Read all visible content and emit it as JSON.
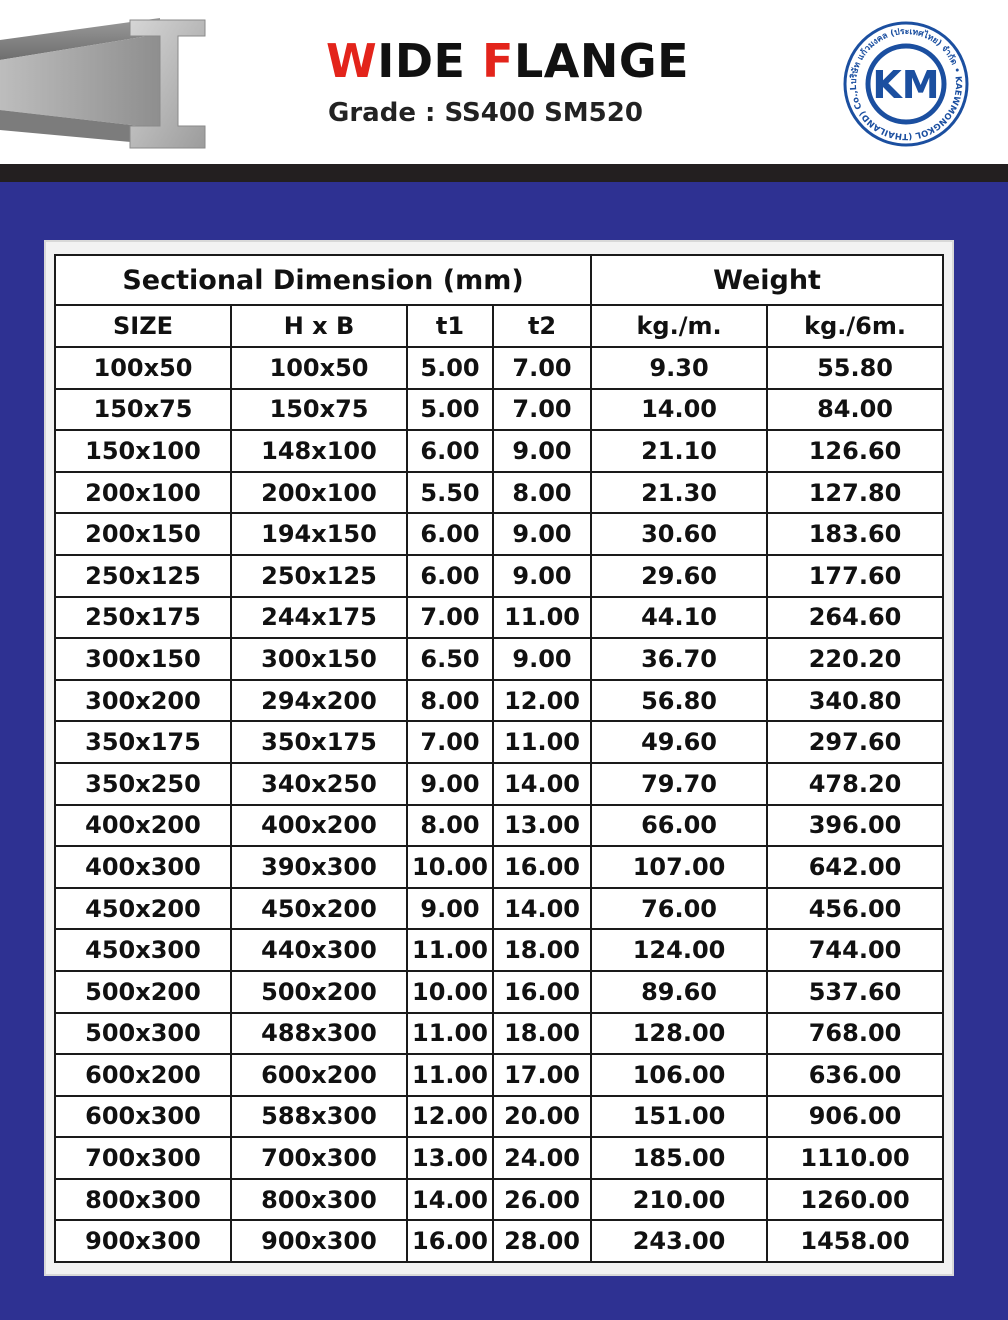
{
  "header": {
    "title_first_letter": "W",
    "title_first_rest": "IDE",
    "title_second_letter": "F",
    "title_second_rest": "LANGE",
    "grade_label": "Grade :",
    "grade_value": "SS400 SM520",
    "accent_color": "#e3241b"
  },
  "logo": {
    "initials": "KM",
    "ring_text": "บริษัท แก้วมงคล (ประเทศไทย) จำกัด • KAEWMONGKOL (THAILAND) Co.,Ltd. •",
    "color": "#1b4fa0"
  },
  "colors": {
    "background_blue": "#2e3192",
    "dark_bar": "#231f20"
  },
  "table": {
    "group_headers": [
      "Sectional Dimension (mm)",
      "Weight"
    ],
    "columns": [
      "SIZE",
      "H x B",
      "t1",
      "t2",
      "kg./m.",
      "kg./6m."
    ],
    "rows": [
      [
        "100x50",
        "100x50",
        "5.00",
        "7.00",
        "9.30",
        "55.80"
      ],
      [
        "150x75",
        "150x75",
        "5.00",
        "7.00",
        "14.00",
        "84.00"
      ],
      [
        "150x100",
        "148x100",
        "6.00",
        "9.00",
        "21.10",
        "126.60"
      ],
      [
        "200x100",
        "200x100",
        "5.50",
        "8.00",
        "21.30",
        "127.80"
      ],
      [
        "200x150",
        "194x150",
        "6.00",
        "9.00",
        "30.60",
        "183.60"
      ],
      [
        "250x125",
        "250x125",
        "6.00",
        "9.00",
        "29.60",
        "177.60"
      ],
      [
        "250x175",
        "244x175",
        "7.00",
        "11.00",
        "44.10",
        "264.60"
      ],
      [
        "300x150",
        "300x150",
        "6.50",
        "9.00",
        "36.70",
        "220.20"
      ],
      [
        "300x200",
        "294x200",
        "8.00",
        "12.00",
        "56.80",
        "340.80"
      ],
      [
        "350x175",
        "350x175",
        "7.00",
        "11.00",
        "49.60",
        "297.60"
      ],
      [
        "350x250",
        "340x250",
        "9.00",
        "14.00",
        "79.70",
        "478.20"
      ],
      [
        "400x200",
        "400x200",
        "8.00",
        "13.00",
        "66.00",
        "396.00"
      ],
      [
        "400x300",
        "390x300",
        "10.00",
        "16.00",
        "107.00",
        "642.00"
      ],
      [
        "450x200",
        "450x200",
        "9.00",
        "14.00",
        "76.00",
        "456.00"
      ],
      [
        "450x300",
        "440x300",
        "11.00",
        "18.00",
        "124.00",
        "744.00"
      ],
      [
        "500x200",
        "500x200",
        "10.00",
        "16.00",
        "89.60",
        "537.60"
      ],
      [
        "500x300",
        "488x300",
        "11.00",
        "18.00",
        "128.00",
        "768.00"
      ],
      [
        "600x200",
        "600x200",
        "11.00",
        "17.00",
        "106.00",
        "636.00"
      ],
      [
        "600x300",
        "588x300",
        "12.00",
        "20.00",
        "151.00",
        "906.00"
      ],
      [
        "700x300",
        "700x300",
        "13.00",
        "24.00",
        "185.00",
        "1110.00"
      ],
      [
        "800x300",
        "800x300",
        "14.00",
        "26.00",
        "210.00",
        "1260.00"
      ],
      [
        "900x300",
        "900x300",
        "16.00",
        "28.00",
        "243.00",
        "1458.00"
      ]
    ]
  }
}
